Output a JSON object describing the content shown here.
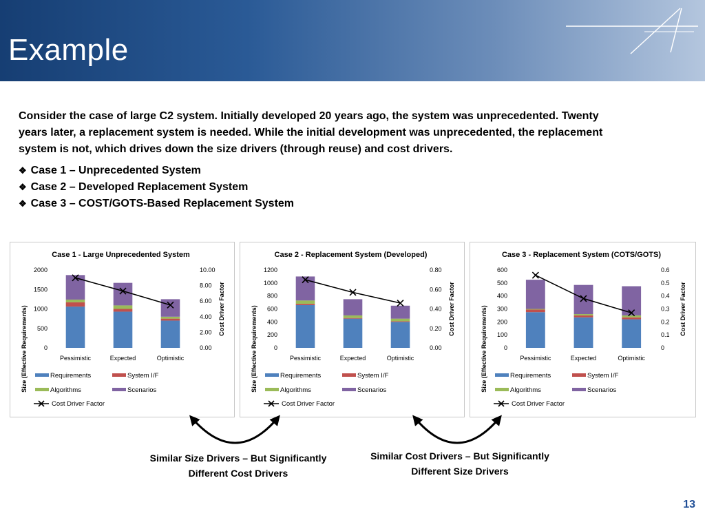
{
  "slide": {
    "title": "Example",
    "intro": "Consider the case of large C2 system. Initially developed 20 years ago, the system was unprecedented. Twenty years later, a replacement system is needed. While the initial development was unprecedented, the replacement system is not, which drives down the size drivers (through reuse) and cost drivers.",
    "cases": [
      "Case 1 – Unprecedented System",
      "Case 2 – Developed Replacement System",
      "Case 3 – COST/GOTS-Based Replacement System"
    ],
    "caption_left": "Similar Size Drivers – But Significantly Different Cost Drivers",
    "caption_right": "Similar Cost Drivers – But Significantly Different Size Drivers",
    "page_number": "13",
    "colors": {
      "requirements": "#4f81bd",
      "system_if": "#c0504d",
      "algorithms": "#9bbb59",
      "scenarios": "#8064a2",
      "line": "#000000",
      "page_number": "#1f4e96"
    }
  },
  "chart_data": [
    {
      "type": "bar",
      "stacked": true,
      "title": "Case 1 - Large Unprecedented System",
      "categories": [
        "Pessimistic",
        "Expected",
        "Optimistic"
      ],
      "ylabel": "Size (Effective Requirements)",
      "y2label": "Cost Driver Factor",
      "ylim": [
        0,
        2000
      ],
      "yticks": [
        "0",
        "500",
        "1000",
        "1500",
        "2000"
      ],
      "y2lim": [
        0,
        10
      ],
      "y2ticks": [
        "0.00",
        "2.00",
        "4.00",
        "6.00",
        "8.00",
        "10.00"
      ],
      "series": [
        {
          "name": "Requirements",
          "values": [
            1060,
            930,
            700
          ]
        },
        {
          "name": "System I/F",
          "values": [
            110,
            70,
            50
          ]
        },
        {
          "name": "Algorithms",
          "values": [
            70,
            90,
            50
          ]
        },
        {
          "name": "Scenarios",
          "values": [
            630,
            580,
            450
          ]
        }
      ],
      "line": {
        "name": "Cost Driver Factor",
        "values": [
          9.0,
          7.3,
          5.5
        ]
      },
      "legend": [
        "Requirements",
        "System I/F",
        "Algorithms",
        "Scenarios",
        "Cost Driver Factor"
      ],
      "legend_position": "bottom"
    },
    {
      "type": "bar",
      "stacked": true,
      "title": "Case 2 - Replacement System (Developed)",
      "categories": [
        "Pessimistic",
        "Expected",
        "Optimistic"
      ],
      "ylabel": "Size (Effective  Requirements)",
      "y2label": "Cost Driver Factor",
      "ylim": [
        0,
        1200
      ],
      "yticks": [
        "0",
        "200",
        "400",
        "600",
        "800",
        "1000",
        "1200"
      ],
      "y2lim": [
        0,
        0.8
      ],
      "y2ticks": [
        "0.00",
        "0.20",
        "0.40",
        "0.60",
        "0.80"
      ],
      "series": [
        {
          "name": "Requirements",
          "values": [
            660,
            450,
            400
          ]
        },
        {
          "name": "System I/F",
          "values": [
            20,
            10,
            10
          ]
        },
        {
          "name": "Algorithms",
          "values": [
            50,
            40,
            40
          ]
        },
        {
          "name": "Scenarios",
          "values": [
            370,
            250,
            200
          ]
        }
      ],
      "line": {
        "name": "Cost Driver Factor",
        "values": [
          0.7,
          0.57,
          0.46
        ]
      },
      "legend": [
        "Requirements",
        "System I/F",
        "Algorithms",
        "Scenarios",
        "Cost Driver Factor"
      ],
      "legend_position": "bottom"
    },
    {
      "type": "bar",
      "stacked": true,
      "title": "Case 3 - Replacement System (COTS/GOTS)",
      "categories": [
        "Pessimistic",
        "Expected",
        "Optimistic"
      ],
      "ylabel": "Size (Effective Requirements)",
      "y2label": "Cost Driver Factor",
      "ylim": [
        0,
        600
      ],
      "yticks": [
        "0",
        "100",
        "200",
        "300",
        "400",
        "500",
        "600"
      ],
      "y2lim": [
        0,
        0.6
      ],
      "y2ticks": [
        "0",
        "0.1",
        "0.2",
        "0.3",
        "0.4",
        "0.5",
        "0.6"
      ],
      "series": [
        {
          "name": "Requirements",
          "values": [
            275,
            235,
            220
          ]
        },
        {
          "name": "System I/F",
          "values": [
            20,
            15,
            15
          ]
        },
        {
          "name": "Algorithms",
          "values": [
            5,
            10,
            15
          ]
        },
        {
          "name": "Scenarios",
          "values": [
            225,
            225,
            225
          ]
        }
      ],
      "line": {
        "name": "Cost Driver Factor",
        "values": [
          0.56,
          0.38,
          0.27
        ]
      },
      "legend": [
        "Requirements",
        "System I/F",
        "Algorithms",
        "Scenarios",
        "Cost Driver Factor"
      ],
      "legend_position": "bottom"
    }
  ]
}
